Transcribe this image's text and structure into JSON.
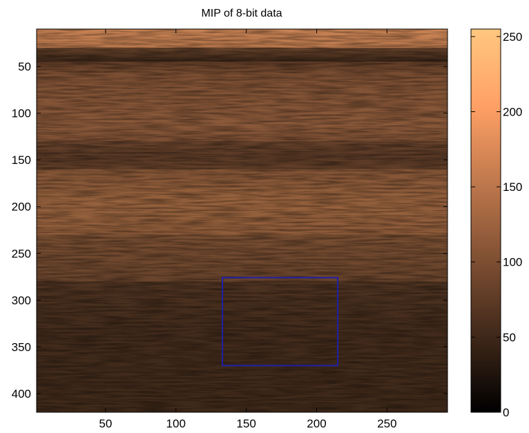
{
  "chart_data": {
    "type": "heatmap",
    "title": "MIP of 8-bit data",
    "xlabel": "",
    "ylabel": "",
    "colormap": "copper",
    "xlim": [
      1,
      293
    ],
    "ylim": [
      10,
      420
    ],
    "y_reversed": true,
    "x_ticks": [
      50,
      100,
      150,
      200,
      250
    ],
    "y_ticks": [
      50,
      100,
      150,
      200,
      250,
      300,
      350,
      400
    ],
    "colorbar": {
      "range": [
        0,
        255
      ],
      "ticks": [
        0,
        50,
        100,
        150,
        200,
        250
      ]
    },
    "roi_rectangle": {
      "x": [
        133,
        215
      ],
      "y": [
        276,
        370
      ],
      "color": "#1f1fa8"
    },
    "image_description_bands": [
      {
        "y": [
          10,
          30
        ],
        "intensity": 165
      },
      {
        "y": [
          30,
          45
        ],
        "intensity": 45
      },
      {
        "y": [
          45,
          130
        ],
        "intensity": 110
      },
      {
        "y": [
          130,
          160
        ],
        "intensity": 80
      },
      {
        "y": [
          160,
          230
        ],
        "intensity": 125
      },
      {
        "y": [
          230,
          280
        ],
        "intensity": 95
      },
      {
        "y": [
          280,
          420
        ],
        "intensity": 55
      }
    ]
  }
}
